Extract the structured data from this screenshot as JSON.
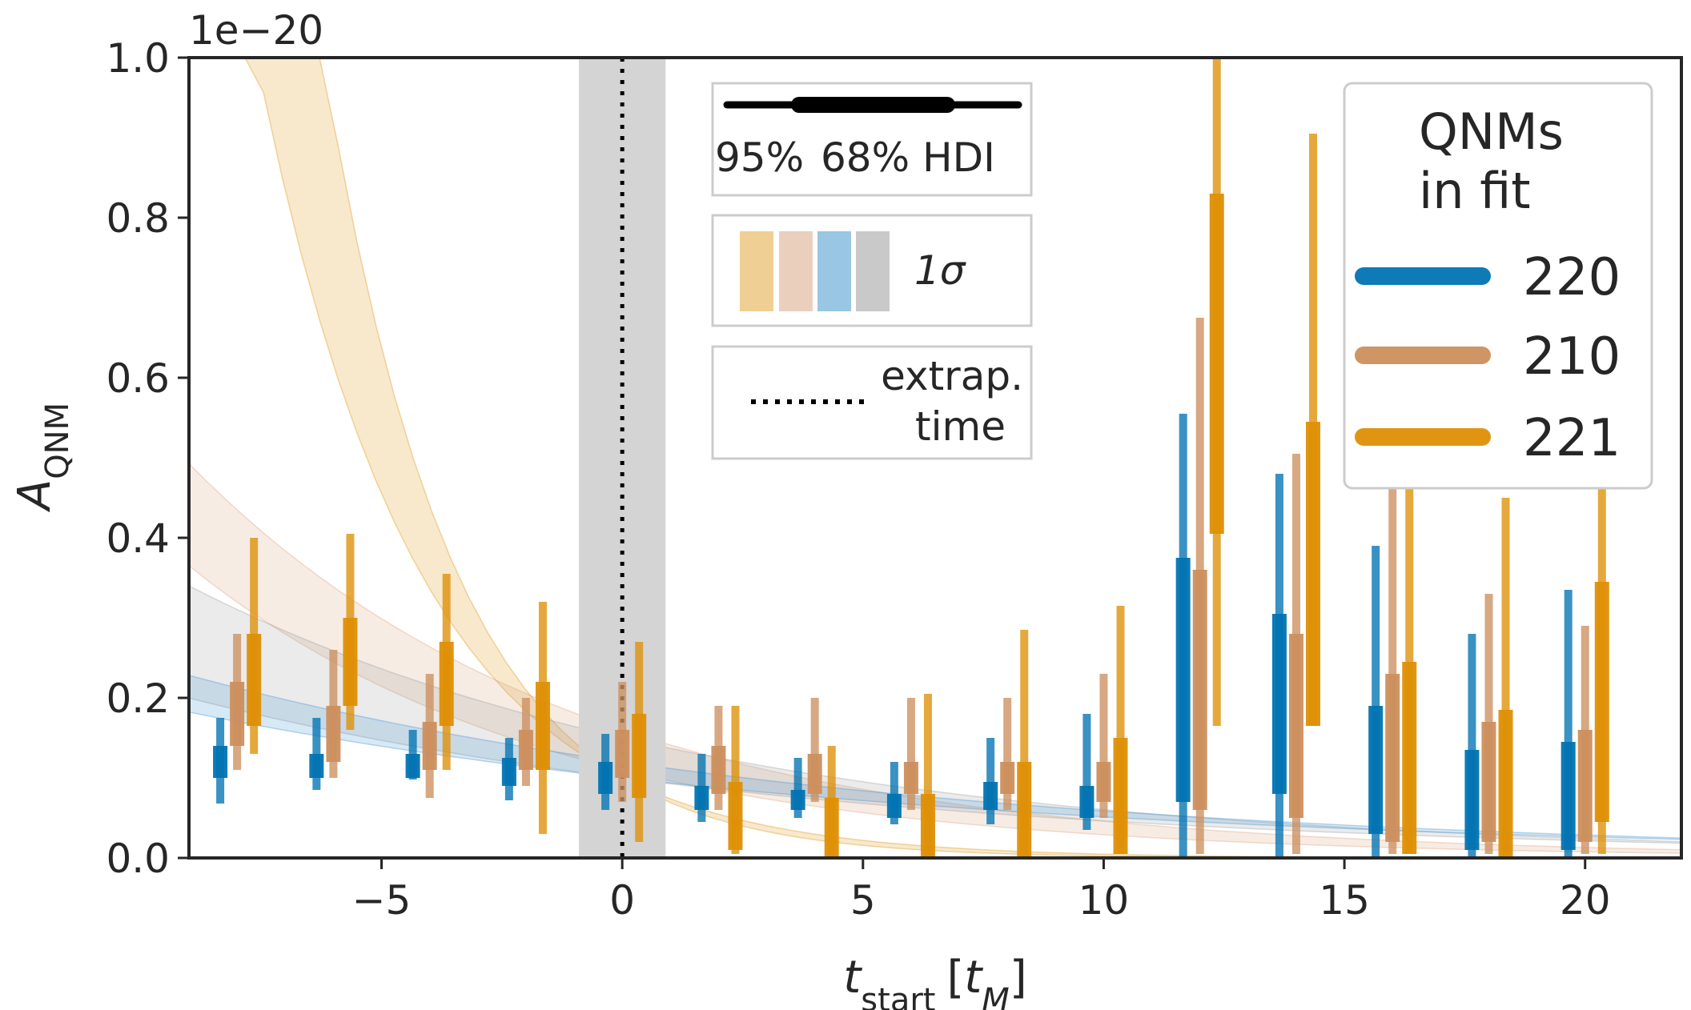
{
  "chart_data": {
    "type": "errorbar",
    "scale_note": "1e−20",
    "xlabel": {
      "main": "t",
      "sub": "start",
      "unit_open": "[",
      "unit_main": "t",
      "unit_sub": "M",
      "unit_close": "]"
    },
    "ylabel": {
      "main": "A",
      "sub": "QNM"
    },
    "xlim": [
      -9.0,
      22.0
    ],
    "ylim": [
      0.0,
      1.0
    ],
    "xticks": [
      {
        "value": -5,
        "label": "−5"
      },
      {
        "value": 0,
        "label": "0"
      },
      {
        "value": 5,
        "label": "5"
      },
      {
        "value": 10,
        "label": "10"
      },
      {
        "value": 15,
        "label": "15"
      },
      {
        "value": 20,
        "label": "20"
      }
    ],
    "yticks": [
      {
        "value": 0.0,
        "label": "0.0"
      },
      {
        "value": 0.2,
        "label": "0.2"
      },
      {
        "value": 0.4,
        "label": "0.4"
      },
      {
        "value": 0.6,
        "label": "0.6"
      },
      {
        "value": 0.8,
        "label": "0.8"
      },
      {
        "value": 1.0,
        "label": "1.0"
      }
    ],
    "extrapolation_time": 0,
    "extrapolation_band": [
      -0.9,
      0.9
    ],
    "t_start": [
      -8,
      -6,
      -4,
      -2,
      0,
      2,
      4,
      6,
      8,
      10,
      12,
      14,
      16,
      18,
      20
    ],
    "offsets": {
      "220": -0.35,
      "210": 0.0,
      "221": 0.35
    },
    "series": [
      {
        "name": "220",
        "color": "#0173b2",
        "hdi95": [
          [
            0.068,
            0.175
          ],
          [
            0.085,
            0.175
          ],
          [
            0.098,
            0.16
          ],
          [
            0.072,
            0.15
          ],
          [
            0.06,
            0.155
          ],
          [
            0.045,
            0.13
          ],
          [
            0.05,
            0.125
          ],
          [
            0.042,
            0.12
          ],
          [
            0.042,
            0.15
          ],
          [
            0.035,
            0.18
          ],
          [
            0.0,
            0.555
          ],
          [
            0.0,
            0.48
          ],
          [
            0.0,
            0.39
          ],
          [
            0.0,
            0.28
          ],
          [
            0.0,
            0.335
          ]
        ],
        "hdi68": [
          [
            0.1,
            0.14
          ],
          [
            0.1,
            0.13
          ],
          [
            0.1,
            0.13
          ],
          [
            0.09,
            0.125
          ],
          [
            0.08,
            0.12
          ],
          [
            0.06,
            0.09
          ],
          [
            0.06,
            0.085
          ],
          [
            0.05,
            0.08
          ],
          [
            0.06,
            0.095
          ],
          [
            0.05,
            0.09
          ],
          [
            0.07,
            0.375
          ],
          [
            0.08,
            0.305
          ],
          [
            0.03,
            0.19
          ],
          [
            0.01,
            0.135
          ],
          [
            0.01,
            0.145
          ]
        ]
      },
      {
        "name": "210",
        "color": "#cc8f5d",
        "hdi95": [
          [
            0.11,
            0.28
          ],
          [
            0.1,
            0.26
          ],
          [
            0.075,
            0.23
          ],
          [
            0.09,
            0.2
          ],
          [
            0.07,
            0.22
          ],
          [
            0.06,
            0.19
          ],
          [
            0.07,
            0.2
          ],
          [
            0.06,
            0.2
          ],
          [
            0.06,
            0.2
          ],
          [
            0.05,
            0.23
          ],
          [
            0.005,
            0.675
          ],
          [
            0.005,
            0.505
          ],
          [
            0.005,
            0.47
          ],
          [
            0.005,
            0.33
          ],
          [
            0.005,
            0.29
          ]
        ],
        "hdi68": [
          [
            0.14,
            0.22
          ],
          [
            0.12,
            0.19
          ],
          [
            0.11,
            0.17
          ],
          [
            0.11,
            0.16
          ],
          [
            0.1,
            0.16
          ],
          [
            0.08,
            0.14
          ],
          [
            0.08,
            0.13
          ],
          [
            0.08,
            0.12
          ],
          [
            0.08,
            0.12
          ],
          [
            0.07,
            0.12
          ],
          [
            0.06,
            0.36
          ],
          [
            0.05,
            0.28
          ],
          [
            0.02,
            0.23
          ],
          [
            0.02,
            0.17
          ],
          [
            0.02,
            0.16
          ]
        ]
      },
      {
        "name": "221",
        "color": "#de8f05",
        "hdi95": [
          [
            0.13,
            0.4
          ],
          [
            0.16,
            0.405
          ],
          [
            0.11,
            0.355
          ],
          [
            0.03,
            0.32
          ],
          [
            0.02,
            0.27
          ],
          [
            0.005,
            0.19
          ],
          [
            0.0,
            0.14
          ],
          [
            0.0,
            0.205
          ],
          [
            0.0,
            0.285
          ],
          [
            0.005,
            0.315
          ],
          [
            0.165,
            1.0
          ],
          [
            0.165,
            0.905
          ],
          [
            0.005,
            0.635
          ],
          [
            0.0,
            0.45
          ],
          [
            0.005,
            0.89
          ]
        ],
        "hdi68": [
          [
            0.165,
            0.28
          ],
          [
            0.19,
            0.3
          ],
          [
            0.165,
            0.27
          ],
          [
            0.11,
            0.22
          ],
          [
            0.075,
            0.18
          ],
          [
            0.01,
            0.095
          ],
          [
            0.0,
            0.075
          ],
          [
            0.0,
            0.08
          ],
          [
            0.0,
            0.12
          ],
          [
            0.005,
            0.15
          ],
          [
            0.405,
            0.83
          ],
          [
            0.165,
            0.545
          ],
          [
            0.005,
            0.245
          ],
          [
            0.0,
            0.185
          ],
          [
            0.045,
            0.345
          ]
        ]
      }
    ],
    "bands": [
      {
        "name": "221",
        "color": "#de8f05",
        "lower": {
          "a": 0.1,
          "tau": 2.7
        },
        "upper": {
          "a": 0.1,
          "tau": 3.3
        }
      },
      {
        "name": "210",
        "color": "#d9a07a",
        "lower": {
          "a": 0.11,
          "tau": 7.5
        },
        "upper": {
          "a": 0.16,
          "tau": 8.0
        }
      },
      {
        "name": "grey",
        "color": "#9a9a9a",
        "lower": {
          "a": 0.1,
          "tau": 13
        },
        "upper": {
          "a": 0.15,
          "tau": 11
        }
      },
      {
        "name": "220",
        "color": "#3d8fd0",
        "lower": {
          "a": 0.1,
          "tau": 15
        },
        "upper": {
          "a": 0.12,
          "tau": 14
        }
      }
    ]
  },
  "legend_hdi": {
    "labels": [
      "95%",
      "68% HDI"
    ]
  },
  "legend_sigma": {
    "swatch_colors": [
      "#f0cf95",
      "#eacfbd",
      "#99c6e2",
      "#c9c9c9"
    ],
    "label": "1σ"
  },
  "legend_extrap": {
    "label_line1": "extrap.",
    "label_line2": "time"
  },
  "legend_qnm": {
    "title_line1": "QNMs",
    "title_line2": "in fit",
    "entries": [
      {
        "label": "220",
        "color": "#0173b2"
      },
      {
        "label": "210",
        "color": "#cc8f5d"
      },
      {
        "label": "221",
        "color": "#de8f05"
      }
    ]
  }
}
